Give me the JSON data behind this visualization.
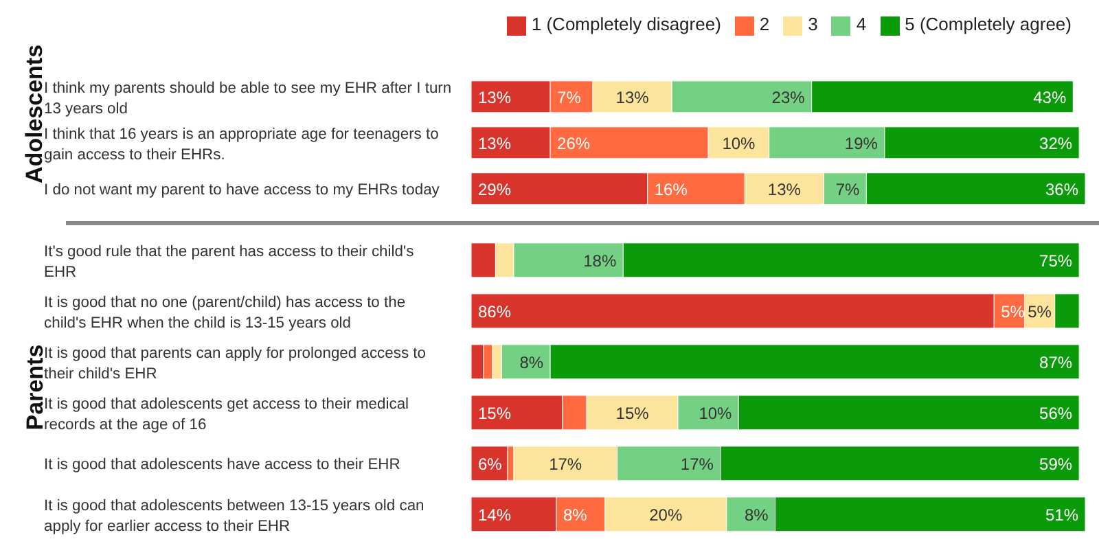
{
  "chart_data": [
    {
      "type": "bar",
      "orientation": "horizontal",
      "stacked": true,
      "ylabel": "Adolescents",
      "legend": "top right",
      "tick_labels": "y",
      "categories": [
        "I think my parents should be able to see my EHR after I turn 13 years old",
        "I think that 16 years is an appropriate age for teenagers to gain access to their EHRs.",
        "I do not want my parent to have access to my EHRs today"
      ],
      "series": [
        {
          "name": "1 (Completely disagree)",
          "color": "#d9342b",
          "values": [
            13,
            13,
            29
          ],
          "value_labels": [
            "13%",
            "13%",
            "29%"
          ]
        },
        {
          "name": "2",
          "color": "#ff6a40",
          "values": [
            7,
            26,
            16
          ],
          "value_labels": [
            "7%",
            "26%",
            "16%"
          ]
        },
        {
          "name": "3",
          "color": "#fde49c",
          "values": [
            13,
            10,
            13
          ],
          "value_labels": [
            "13%",
            "10%",
            "13%"
          ]
        },
        {
          "name": "4",
          "color": "#74d184",
          "values": [
            23,
            19,
            7
          ],
          "value_labels": [
            "23%",
            "19%",
            "7%"
          ]
        },
        {
          "name": "5 (Completely agree)",
          "color": "#0a9a0a",
          "values": [
            43,
            32,
            36
          ],
          "value_labels": [
            "43%",
            "32%",
            "36%"
          ]
        }
      ]
    },
    {
      "type": "bar",
      "orientation": "horizontal",
      "stacked": true,
      "ylabel": "Parents",
      "tick_labels": "y",
      "categories": [
        "It's good rule that the parent has access to their child's EHR",
        "It is good that no one (parent/child) has access to the child's EHR when the child is 13-15 years old",
        "It is good that parents can apply for prolonged access to their child's EHR",
        "It is good that adolescents get access to their medical records at the age of 16",
        "It is good that adolescents have access to their EHR",
        "It is good that adolescents between 13-15 years old can apply for earlier access to their EHR"
      ],
      "series": [
        {
          "color": "#d9342b",
          "values": [
            4,
            86,
            2,
            15,
            6,
            14
          ],
          "value_labels": [
            null,
            "86%",
            null,
            "15%",
            "6%",
            "14%"
          ]
        },
        {
          "color": "#ff6a40",
          "values": [
            0,
            5,
            1.5,
            4,
            1,
            8
          ],
          "value_labels": [
            null,
            "5%",
            null,
            null,
            null,
            "8%"
          ]
        },
        {
          "color": "#fde49c",
          "values": [
            3,
            5,
            1.5,
            15,
            17,
            20
          ],
          "value_labels": [
            null,
            "5%",
            null,
            "15%",
            "17%",
            "20%"
          ]
        },
        {
          "color": "#74d184",
          "values": [
            18,
            0,
            8,
            10,
            17,
            8
          ],
          "value_labels": [
            "18%",
            null,
            "8%",
            "10%",
            "17%",
            "8%"
          ]
        },
        {
          "color": "#0a9a0a",
          "values": [
            75,
            4,
            87,
            56,
            59,
            51
          ],
          "value_labels": [
            "75%",
            null,
            "87%",
            "56%",
            "59%",
            "51%"
          ]
        }
      ]
    }
  ]
}
